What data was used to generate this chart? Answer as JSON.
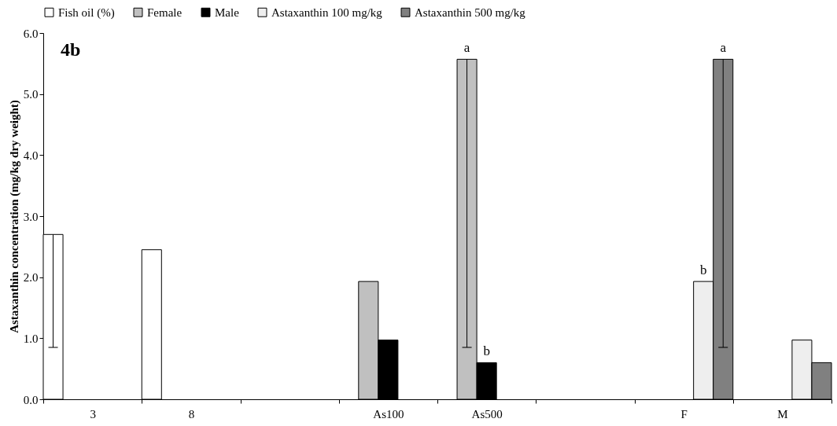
{
  "chart_data": {
    "type": "bar",
    "ylabel": "Astaxanthin concentration (mg/kg dry weight)",
    "categories": [
      "3",
      "8",
      null,
      "As100",
      "As500",
      null,
      "F",
      "M"
    ],
    "series": [
      {
        "name": "Fish oil (%)",
        "color": "#ffffff",
        "values": [
          2.7,
          2.45,
          null,
          null,
          null,
          null,
          null,
          null
        ],
        "errors": [
          [
            0.85,
            2.7
          ],
          null,
          null,
          null,
          null,
          null,
          null,
          null
        ]
      },
      {
        "name": "Female",
        "color": "#c0c0c0",
        "values": [
          null,
          null,
          null,
          1.93,
          5.57,
          null,
          null,
          null
        ],
        "errors": [
          null,
          null,
          null,
          null,
          [
            0.85,
            5.57
          ],
          null,
          null,
          null
        ]
      },
      {
        "name": "Male",
        "color": "#000000",
        "values": [
          null,
          null,
          null,
          0.97,
          0.6,
          null,
          null,
          null
        ]
      },
      {
        "name": "Astaxanthin 100 mg/kg",
        "color": "#eeeeee",
        "values": [
          null,
          null,
          null,
          null,
          null,
          null,
          1.93,
          0.97
        ]
      },
      {
        "name": "Astaxanthin 500 mg/kg",
        "color": "#808080",
        "values": [
          null,
          null,
          null,
          null,
          null,
          null,
          5.57,
          0.6
        ],
        "errors": [
          null,
          null,
          null,
          null,
          null,
          null,
          [
            0.85,
            5.57
          ],
          null
        ]
      }
    ],
    "ylim": [
      0,
      6
    ],
    "yticks": [
      {
        "value": 0,
        "label": "0.0"
      },
      {
        "value": 1,
        "label": "1.0"
      },
      {
        "value": 2,
        "label": "2.0"
      },
      {
        "value": 3,
        "label": "3.0"
      },
      {
        "value": 4,
        "label": "4.0"
      },
      {
        "value": 5,
        "label": "5.0"
      },
      {
        "value": 6,
        "label": "6.0"
      }
    ],
    "annotations": [
      "4b",
      "a",
      "b",
      "b",
      "a"
    ],
    "legend": "top",
    "grid": false
  }
}
